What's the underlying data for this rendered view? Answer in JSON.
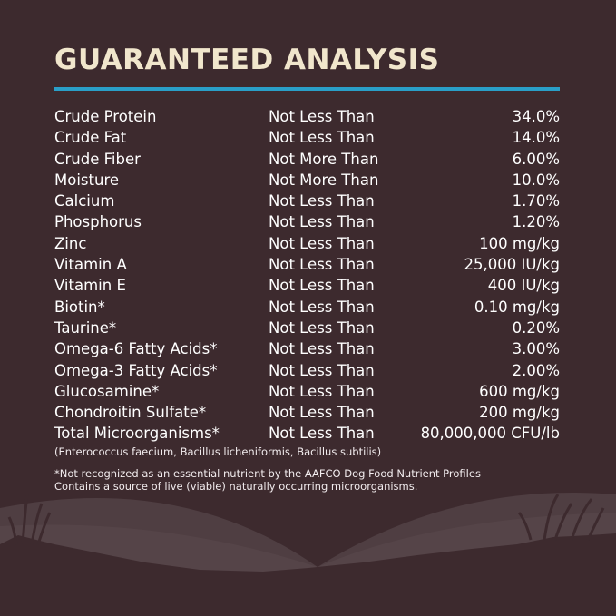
{
  "title": "GUARANTEED ANALYSIS",
  "colors": {
    "background": "#3d2a2e",
    "title": "#f1e6cc",
    "rule": "#2a9fc8"
  },
  "rows": [
    {
      "nutrient": "Crude Protein",
      "qualifier": "Not Less Than",
      "value": "34.0%"
    },
    {
      "nutrient": "Crude Fat",
      "qualifier": "Not Less Than",
      "value": "14.0%"
    },
    {
      "nutrient": "Crude Fiber",
      "qualifier": "Not More Than",
      "value": "6.00%"
    },
    {
      "nutrient": "Moisture",
      "qualifier": "Not More Than",
      "value": "10.0%"
    },
    {
      "nutrient": "Calcium",
      "qualifier": "Not Less Than",
      "value": "1.70%"
    },
    {
      "nutrient": "Phosphorus",
      "qualifier": "Not Less Than",
      "value": "1.20%"
    },
    {
      "nutrient": "Zinc",
      "qualifier": "Not Less Than",
      "value": "100 mg/kg"
    },
    {
      "nutrient": "Vitamin A",
      "qualifier": "Not Less Than",
      "value": "25,000 IU/kg"
    },
    {
      "nutrient": "Vitamin E",
      "qualifier": "Not Less Than",
      "value": "400 IU/kg"
    },
    {
      "nutrient": "Biotin*",
      "qualifier": "Not Less Than",
      "value": "0.10 mg/kg"
    },
    {
      "nutrient": "Taurine*",
      "qualifier": "Not Less Than",
      "value": "0.20%"
    },
    {
      "nutrient": "Omega-6 Fatty Acids*",
      "qualifier": "Not Less Than",
      "value": "3.00%"
    },
    {
      "nutrient": "Omega-3 Fatty Acids*",
      "qualifier": "Not Less Than",
      "value": "2.00%"
    },
    {
      "nutrient": "Glucosamine*",
      "qualifier": "Not Less Than",
      "value": "600 mg/kg"
    },
    {
      "nutrient": "Chondroitin Sulfate*",
      "qualifier": "Not Less Than",
      "value": "200 mg/kg"
    },
    {
      "nutrient": "Total Microorganisms*",
      "qualifier": "Not Less Than",
      "value": "80,000,000 CFU/lb"
    }
  ],
  "organisms_note": "(Enterococcus faecium, Bacillus licheniformis, Bacillus subtilis)",
  "footnote_1": "*Not recognized as an essential nutrient by the AAFCO Dog Food Nutrient Profiles",
  "footnote_2": "Contains a source of live (viable) naturally occurring microorganisms."
}
